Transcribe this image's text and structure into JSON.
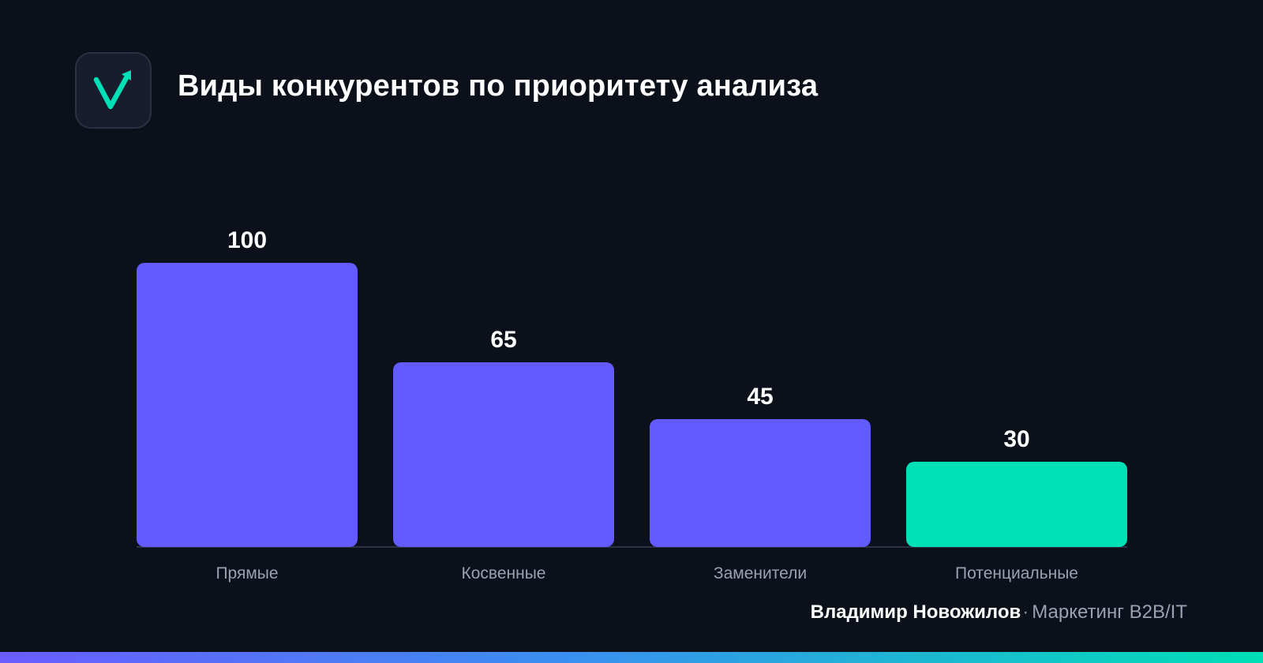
{
  "header": {
    "title": "Виды конкурентов по приоритету анализа",
    "logo_icon": "check-arrow-icon"
  },
  "chart_data": {
    "type": "bar",
    "categories": [
      "Прямые",
      "Косвенные",
      "Заменители",
      "Потенциальные"
    ],
    "values": [
      100,
      65,
      45,
      30
    ],
    "data_labels": [
      "100",
      "65",
      "45",
      "30"
    ],
    "ylim": [
      0,
      100
    ],
    "grid": false,
    "colors": {
      "default": "#625bff",
      "highlight": "#00e0b6",
      "highlight_category": "Потенциальные"
    }
  },
  "footer": {
    "author": "Владимир Новожилов",
    "separator": "·",
    "tagline": "Маркетинг B2B/IT"
  },
  "colors": {
    "background": "#0b101a",
    "accent": "#00e0b6",
    "primary_bar": "#625bff",
    "axis_line": "#2c3347",
    "category_label": "#9aa1b2"
  }
}
